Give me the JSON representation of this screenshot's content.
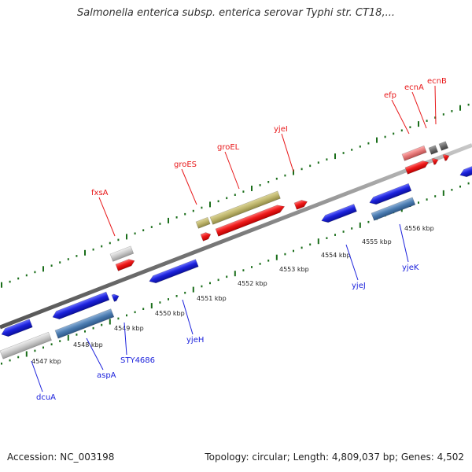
{
  "title": "Salmonella enterica subsp. enterica serovar Typhi str. CT18,...",
  "footer": {
    "accession": "Accession: NC_003198",
    "summary": "Topology: circular; Length: 4,809,037 bp; Genes: 4,502"
  },
  "ticks": [
    "4547 kbp",
    "4548 kbp",
    "4549 kbp",
    "4550 kbp",
    "4551 kbp",
    "4552 kbp",
    "4553 kbp",
    "4554 kbp",
    "4555 kbp",
    "4556 kbp"
  ],
  "genes": {
    "top": [
      "fxsA",
      "groES",
      "groEL",
      "yjeI",
      "efp",
      "ecnA",
      "ecnB"
    ],
    "bottom": [
      "dcuA",
      "aspA",
      "STY4686",
      "yjeH",
      "yjeJ",
      "yjeK"
    ]
  },
  "colors": {
    "forward_gene": "#e8181a",
    "reverse_gene": "#1c22dc",
    "rna": "#bdb46b",
    "pseudo": "#c9c9c9",
    "other": "#4a7bb0",
    "label_top": "#e8181a",
    "label_bottom": "#1c22dc",
    "axis": "#888888",
    "tick": "#1a6e1a"
  }
}
